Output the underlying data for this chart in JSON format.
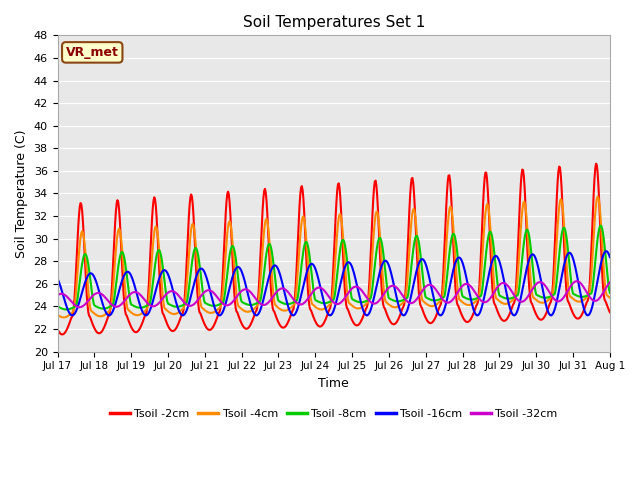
{
  "title": "Soil Temperatures Set 1",
  "xlabel": "Time",
  "ylabel": "Soil Temperature (C)",
  "ylim": [
    20,
    48
  ],
  "bg_color": "#e8e8e8",
  "fig_color": "#ffffff",
  "annotation_text": "VR_met",
  "annotation_bg": "#ffffcc",
  "annotation_border": "#8B4513",
  "line_colors": [
    "#ff0000",
    "#ff8c00",
    "#00cc00",
    "#0000ff",
    "#cc00cc"
  ],
  "line_labels": [
    "Tsoil -2cm",
    "Tsoil -4cm",
    "Tsoil -8cm",
    "Tsoil -16cm",
    "Tsoil -32cm"
  ],
  "tick_labels": [
    "Jul 17",
    "Jul 18",
    "Jul 19",
    "Jul 20",
    "Jul 21",
    "Jul 22",
    "Jul 23",
    "Jul 24",
    "Jul 25",
    "Jul 26",
    "Jul 27",
    "Jul 28",
    "Jul 29",
    "Jul 30",
    "Jul 31",
    "Aug 1"
  ],
  "grid_color": "#d0d0d0",
  "linewidth": 1.5
}
